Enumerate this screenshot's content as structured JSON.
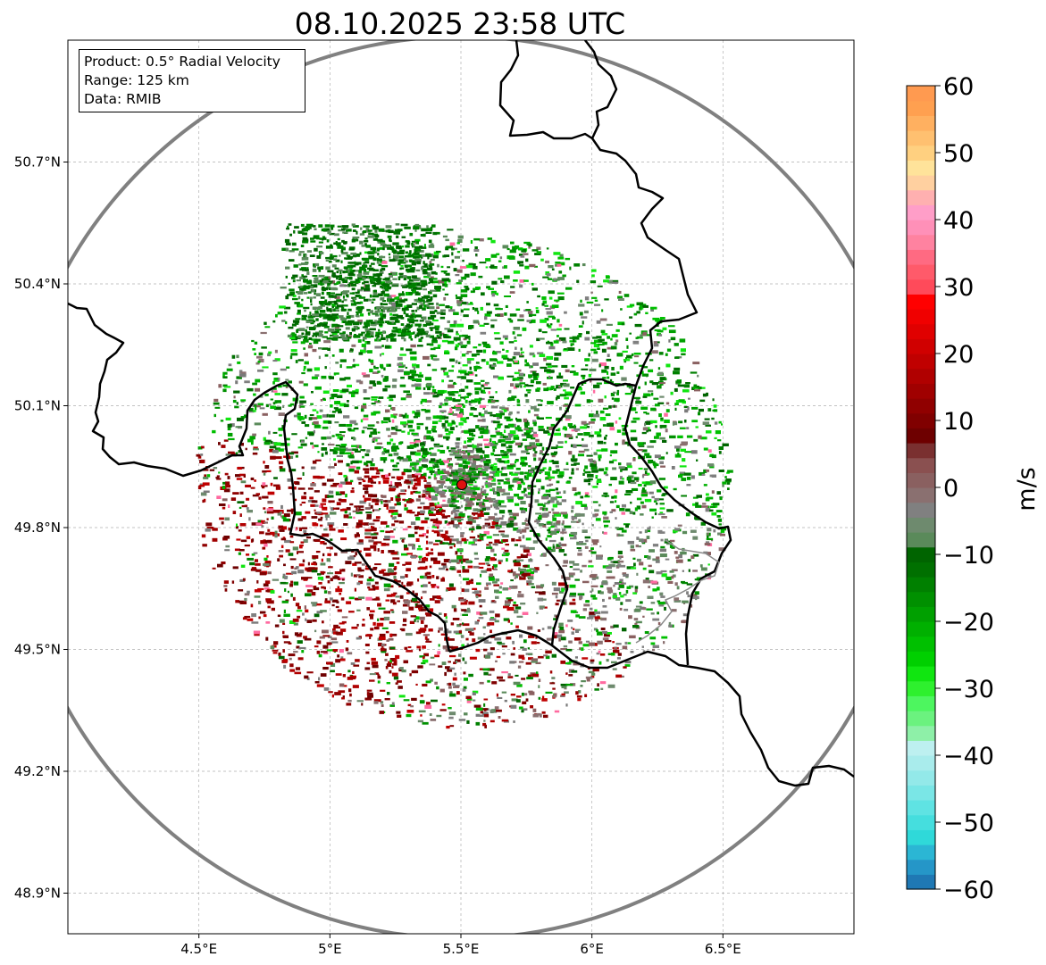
{
  "title": "08.10.2025 23:58 UTC",
  "info_box": {
    "product": "Product: 0.5° Radial Velocity",
    "range": "Range: 125 km",
    "data": "Data: RMIB"
  },
  "map": {
    "lon_range": [
      4.0,
      7.0
    ],
    "lat_range": [
      48.8,
      51.0
    ],
    "x_ticks": [
      "4.5°E",
      "5°E",
      "5.5°E",
      "6°E",
      "6.5°E"
    ],
    "x_tick_values": [
      4.5,
      5.0,
      5.5,
      6.0,
      6.5
    ],
    "y_ticks": [
      "50.7°N",
      "50.4°N",
      "50.1°N",
      "49.8°N",
      "49.5°N",
      "49.2°N",
      "48.9°N"
    ],
    "y_tick_values": [
      50.7,
      50.4,
      50.1,
      49.8,
      49.5,
      49.2,
      48.9
    ],
    "grid": true,
    "radar_site": {
      "lon": 5.5,
      "lat": 49.915
    },
    "range_ring_color": "#808080",
    "border_color": "#000000"
  },
  "colorbar": {
    "label": "m/s",
    "min": -60,
    "max": 60,
    "tick_labels": [
      "60",
      "50",
      "40",
      "30",
      "20",
      "10",
      "0",
      "−10",
      "−20",
      "−30",
      "−40",
      "−50",
      "−60"
    ],
    "tick_values": [
      60,
      50,
      40,
      30,
      20,
      10,
      0,
      -10,
      -20,
      -30,
      -40,
      -50,
      -60
    ],
    "colors_bottom_to_top": [
      "#1f78b4",
      "#2596c8",
      "#2bb6d4",
      "#2fd9d9",
      "#45dede",
      "#5fe3e3",
      "#7ae6e6",
      "#93e9e9",
      "#a9ecec",
      "#bdf0f0",
      "#8ef0a8",
      "#6bf27f",
      "#4df65f",
      "#2ef02e",
      "#10e610",
      "#00d000",
      "#00c000",
      "#00b000",
      "#00a000",
      "#009000",
      "#008000",
      "#007000",
      "#006400",
      "#5a8a5a",
      "#6e8a6e",
      "#808080",
      "#8a7070",
      "#8a6060",
      "#8a5050",
      "#7a3030",
      "#6e0000",
      "#800000",
      "#900000",
      "#a00000",
      "#b00000",
      "#c00000",
      "#d00000",
      "#e00000",
      "#f00000",
      "#ff0000",
      "#ff4a5a",
      "#ff5a6a",
      "#ff6a82",
      "#ff82a0",
      "#ff90b8",
      "#ff9ec8",
      "#ffb0b0",
      "#ffd0a0",
      "#ffe39a",
      "#ffd080",
      "#ffc070",
      "#ffb060",
      "#ffa050",
      "#ff9a50"
    ]
  }
}
